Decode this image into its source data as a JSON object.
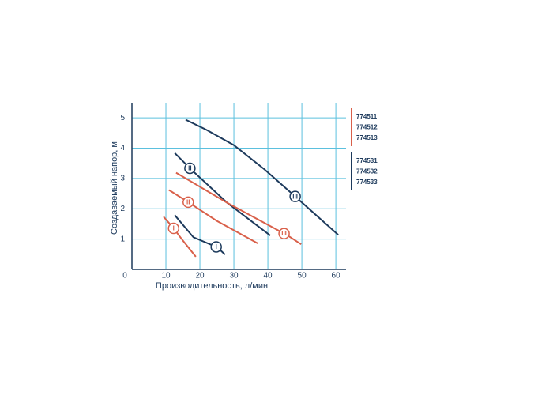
{
  "chart_data": {
    "type": "line",
    "xlabel": "Производительность, л/мин",
    "ylabel": "Создаваемый напор, м",
    "xlim": [
      0,
      63
    ],
    "ylim": [
      0,
      5.5
    ],
    "xticks": [
      0,
      10,
      20,
      30,
      40,
      50,
      60
    ],
    "yticks": [
      1,
      2,
      3,
      4,
      5
    ],
    "grid": true,
    "series": [
      {
        "name": "I",
        "color": "#d9604a",
        "x": [
          9.3,
          12.1,
          15,
          18.8
        ],
        "values": [
          1.74,
          1.38,
          0.95,
          0.42
        ]
      },
      {
        "name": "I",
        "color": "#1d3a5c",
        "x": [
          12.6,
          18.1,
          25.1,
          27.4
        ],
        "values": [
          1.79,
          1.06,
          0.73,
          0.49
        ]
      },
      {
        "name": "II",
        "color": "#d9604a",
        "x": [
          10.9,
          16,
          25,
          37
        ],
        "values": [
          2.62,
          2.26,
          1.6,
          0.86
        ]
      },
      {
        "name": "II",
        "color": "#1d3a5c",
        "x": [
          12.6,
          17.4,
          28,
          40.7
        ],
        "values": [
          3.84,
          3.3,
          2.2,
          1.12
        ]
      },
      {
        "name": "III",
        "color": "#d9604a",
        "x": [
          13,
          28,
          45.8,
          49.8
        ],
        "values": [
          3.19,
          2.2,
          1.12,
          0.83
        ]
      },
      {
        "name": "III",
        "color": "#1d3a5c",
        "x": [
          15.8,
          22,
          30,
          39,
          47.7,
          60.7
        ],
        "values": [
          4.94,
          4.6,
          4.1,
          3.3,
          2.44,
          1.14
        ]
      }
    ],
    "legend": [
      {
        "color": "#d9604a",
        "labels": [
          "774511",
          "774512",
          "774513"
        ]
      },
      {
        "color": "#1d3a5c",
        "labels": [
          "774531",
          "774532",
          "774533"
        ]
      }
    ]
  }
}
